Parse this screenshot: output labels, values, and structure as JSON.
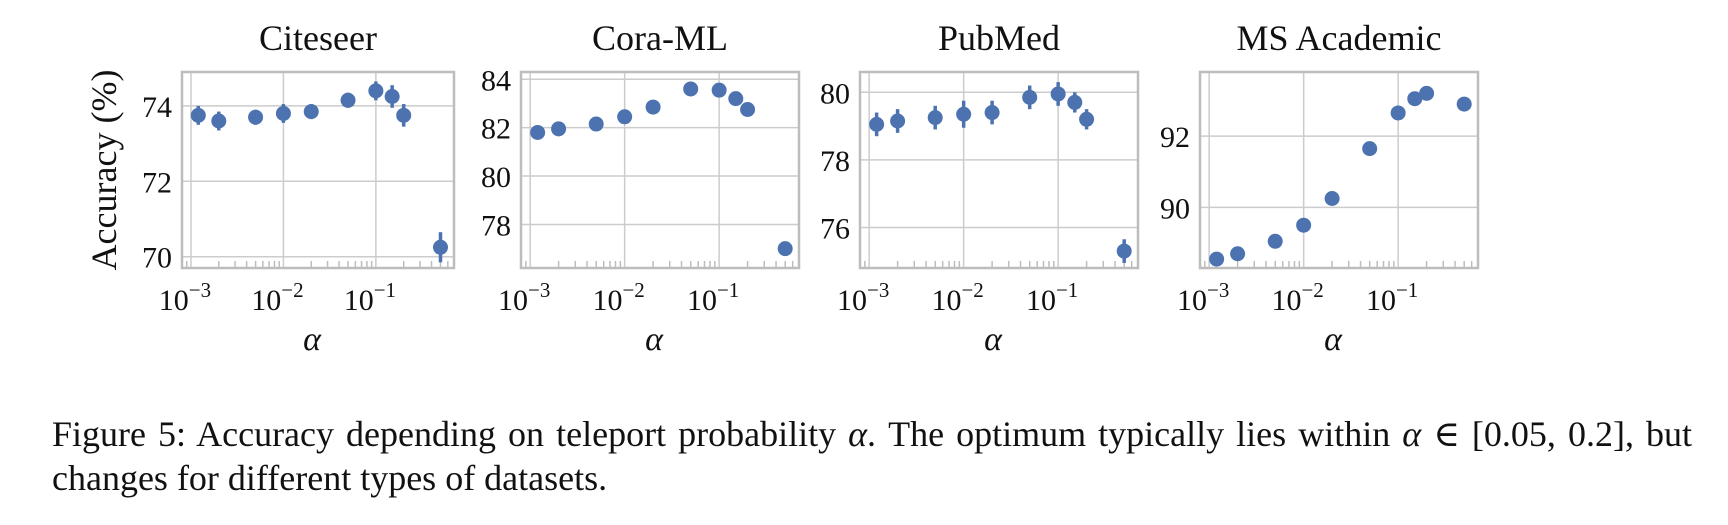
{
  "figure": {
    "ylabel": "Accuracy (%)",
    "colors": {
      "marker": "#4c72b0",
      "grid": "#cccccc",
      "frame": "#bdbdbd"
    }
  },
  "chart_data": [
    {
      "type": "scatter",
      "title": "Citeseer",
      "xlabel": "α",
      "ylabel": "Accuracy (%)",
      "xscale": "log",
      "xlim": [
        0.0008,
        0.7
      ],
      "ylim": [
        69.7,
        74.9
      ],
      "yticks": [
        70,
        72,
        74
      ],
      "xticks": [
        0.001,
        0.01,
        0.1
      ],
      "xticklabels": [
        "10",
        "10",
        "10"
      ],
      "xtickexps": [
        "−3",
        "−2",
        "−1"
      ],
      "series": [
        {
          "name": "Accuracy",
          "x": [
            0.0012,
            0.002,
            0.005,
            0.01,
            0.02,
            0.05,
            0.1,
            0.15,
            0.2,
            0.5
          ],
          "y": [
            73.75,
            73.6,
            73.7,
            73.8,
            73.85,
            74.15,
            74.4,
            74.25,
            73.75,
            70.25
          ],
          "err": [
            0.25,
            0.25,
            0.2,
            0.25,
            0.2,
            0.2,
            0.25,
            0.3,
            0.3,
            0.4
          ]
        }
      ]
    },
    {
      "type": "scatter",
      "title": "Cora-ML",
      "xlabel": "α",
      "ylabel": "",
      "xscale": "log",
      "xlim": [
        0.0008,
        0.7
      ],
      "ylim": [
        76.2,
        84.3
      ],
      "yticks": [
        78,
        80,
        82,
        84
      ],
      "xticks": [
        0.001,
        0.01,
        0.1
      ],
      "xticklabels": [
        "10",
        "10",
        "10"
      ],
      "xtickexps": [
        "−3",
        "−2",
        "−1"
      ],
      "series": [
        {
          "name": "Accuracy",
          "x": [
            0.0012,
            0.002,
            0.005,
            0.01,
            0.02,
            0.05,
            0.1,
            0.15,
            0.2,
            0.5
          ],
          "y": [
            81.8,
            81.95,
            82.15,
            82.45,
            82.85,
            83.6,
            83.55,
            83.2,
            82.75,
            77.0
          ],
          "err": [
            0.2,
            0.3,
            0.2,
            0.25,
            0.2,
            0.15,
            0.15,
            0.2,
            0.2,
            0.2
          ]
        }
      ]
    },
    {
      "type": "scatter",
      "title": "PubMed",
      "xlabel": "α",
      "ylabel": "",
      "xscale": "log",
      "xlim": [
        0.0008,
        0.7
      ],
      "ylim": [
        74.8,
        80.6
      ],
      "yticks": [
        76,
        78,
        80
      ],
      "xticks": [
        0.001,
        0.01,
        0.1
      ],
      "xticklabels": [
        "10",
        "10",
        "10"
      ],
      "xtickexps": [
        "−3",
        "−2",
        "−1"
      ],
      "series": [
        {
          "name": "Accuracy",
          "x": [
            0.0012,
            0.002,
            0.005,
            0.01,
            0.02,
            0.05,
            0.1,
            0.15,
            0.2,
            0.5
          ],
          "y": [
            79.05,
            79.15,
            79.25,
            79.35,
            79.4,
            79.85,
            79.95,
            79.7,
            79.2,
            75.3
          ],
          "err": [
            0.35,
            0.35,
            0.35,
            0.4,
            0.35,
            0.35,
            0.35,
            0.3,
            0.3,
            0.35
          ]
        }
      ]
    },
    {
      "type": "scatter",
      "title": "MS Academic",
      "xlabel": "α",
      "ylabel": "",
      "xscale": "log",
      "xlim": [
        0.0008,
        0.7
      ],
      "ylim": [
        88.3,
        93.8
      ],
      "yticks": [
        90,
        92
      ],
      "xticks": [
        0.001,
        0.01,
        0.1
      ],
      "xticklabels": [
        "10",
        "10",
        "10"
      ],
      "xtickexps": [
        "−3",
        "−2",
        "−1"
      ],
      "series": [
        {
          "name": "Accuracy",
          "x": [
            0.0012,
            0.002,
            0.005,
            0.01,
            0.02,
            0.05,
            0.1,
            0.15,
            0.2,
            0.5
          ],
          "y": [
            88.55,
            88.7,
            89.05,
            89.5,
            90.25,
            91.65,
            92.65,
            93.05,
            93.2,
            92.9
          ],
          "err": [
            0.05,
            0.05,
            0.05,
            0.05,
            0.05,
            0.05,
            0.05,
            0.05,
            0.05,
            0.05
          ]
        }
      ]
    }
  ],
  "caption": {
    "label": "Figure 5:",
    "text_1": " Accuracy depending on teleport probability ",
    "alpha_1": "α",
    "text_2": ". The optimum typically lies within ",
    "alpha_2": "α",
    "text_3": " ∈ [0.05, 0.2], but changes for different types of datasets."
  }
}
